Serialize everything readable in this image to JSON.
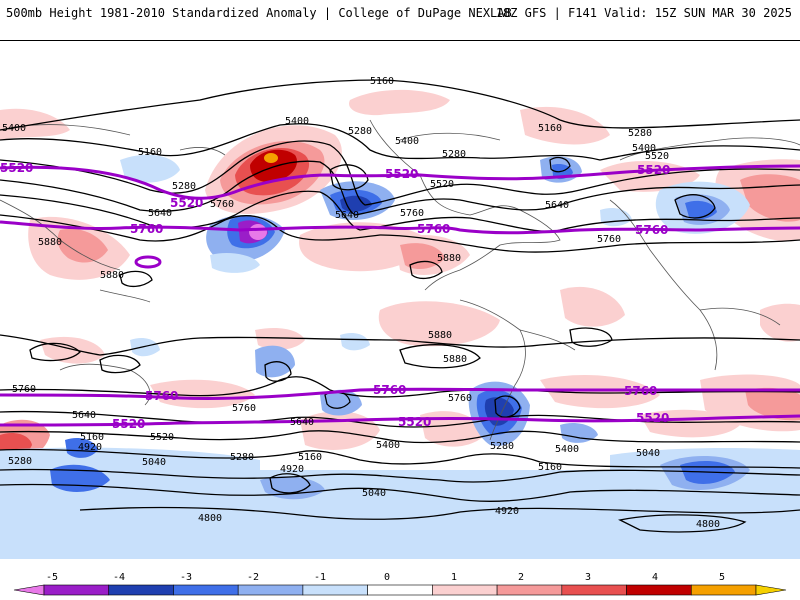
{
  "header": {
    "title": "500mb Height 1981-2010 Standardized Anomaly | College of DuPage NEXLAB",
    "run_info": "18Z GFS | F141 Valid: 15Z SUN MAR 30 2025"
  },
  "contour_labels": [
    "5160",
    "5400",
    "5400",
    "5280",
    "5160",
    "5400",
    "5280",
    "5160",
    "5280",
    "5400",
    "5520",
    "5280",
    "5520",
    "5640",
    "5760",
    "5640",
    "5760",
    "5640",
    "5760",
    "5880",
    "5880",
    "5880",
    "5880",
    "5880",
    "5760",
    "5760",
    "5640",
    "5760",
    "5520",
    "5640",
    "5400",
    "5280",
    "5160",
    "5040",
    "4920",
    "5280",
    "5160",
    "5040",
    "4920",
    "4800",
    "5400",
    "5280",
    "5160",
    "5040",
    "4920",
    "4800"
  ],
  "highlight_labels": [
    "5520",
    "5520",
    "5520",
    "5520",
    "5760",
    "5760",
    "5760",
    "5760",
    "5760",
    "5760",
    "5520",
    "5520",
    "5520"
  ],
  "colorbar": {
    "ticks": [
      "-5",
      "-4",
      "-3",
      "-2",
      "-1",
      "0",
      "1",
      "2",
      "3",
      "4",
      "5"
    ],
    "colors": [
      "#e879e8",
      "#9a1ec8",
      "#1f3fb0",
      "#3f6fe8",
      "#8fb0f0",
      "#c8e0fb",
      "#ffffff",
      "#fbd0d0",
      "#f59a9a",
      "#e85050",
      "#c00000",
      "#f5a000",
      "#f5d000"
    ]
  },
  "colors": {
    "contour": "#000000",
    "highlight": "#9a00c8",
    "pos_light": "#fbd0d0",
    "pos_mid": "#f59a9a",
    "pos_strong": "#e85050",
    "pos_max": "#c00000",
    "neg_light": "#c8e0fb",
    "neg_mid": "#8fb0f0",
    "neg_strong": "#3f6fe8",
    "neg_max": "#1f3fb0",
    "neg_ext": "#e879e8",
    "land": "#555555"
  }
}
